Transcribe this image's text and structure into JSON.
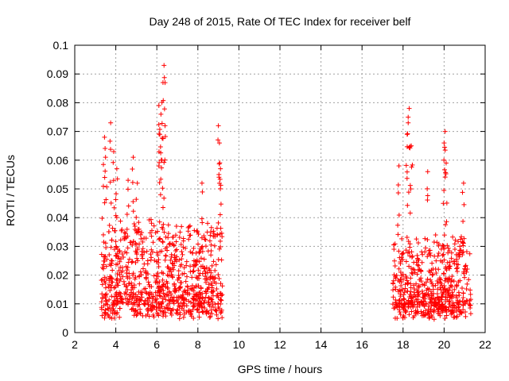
{
  "chart_data": {
    "type": "scatter",
    "title": "Day 248 of 2015, Rate Of TEC Index for receiver belf",
    "xlabel": "GPS time / hours",
    "ylabel": "ROTI / TECUs",
    "xlim": [
      2,
      22
    ],
    "ylim": [
      0,
      0.1
    ],
    "xticks": [
      "2",
      "4",
      "6",
      "8",
      "10",
      "12",
      "14",
      "16",
      "18",
      "20",
      "22"
    ],
    "yticks": [
      "0",
      "0.01",
      "0.02",
      "0.03",
      "0.04",
      "0.05",
      "0.06",
      "0.07",
      "0.08",
      "0.09",
      "0.1"
    ],
    "grid": true,
    "marker": "+",
    "color": "#ff0000",
    "series": [
      {
        "name": "ROTI",
        "segments": [
          {
            "x_start": 3.3,
            "x_end": 9.2,
            "typical": 0.015,
            "spread": 0.012,
            "min": 0.002,
            "max": 0.043
          },
          {
            "x_start": 17.5,
            "x_end": 21.3,
            "typical": 0.013,
            "spread": 0.01,
            "min": 0.003,
            "max": 0.04
          }
        ],
        "peaks": [
          {
            "x": 3.45,
            "y": 0.068
          },
          {
            "x": 3.5,
            "y": 0.061
          },
          {
            "x": 3.75,
            "y": 0.073
          },
          {
            "x": 3.9,
            "y": 0.063
          },
          {
            "x": 4.05,
            "y": 0.057
          },
          {
            "x": 4.6,
            "y": 0.053
          },
          {
            "x": 4.85,
            "y": 0.061
          },
          {
            "x": 5.05,
            "y": 0.052
          },
          {
            "x": 6.1,
            "y": 0.079
          },
          {
            "x": 6.2,
            "y": 0.076
          },
          {
            "x": 6.35,
            "y": 0.093
          },
          {
            "x": 6.3,
            "y": 0.087
          },
          {
            "x": 6.4,
            "y": 0.072
          },
          {
            "x": 6.25,
            "y": 0.06
          },
          {
            "x": 6.15,
            "y": 0.069
          },
          {
            "x": 8.2,
            "y": 0.052
          },
          {
            "x": 9.0,
            "y": 0.072
          },
          {
            "x": 9.05,
            "y": 0.066
          },
          {
            "x": 9.1,
            "y": 0.057
          },
          {
            "x": 17.8,
            "y": 0.058
          },
          {
            "x": 18.3,
            "y": 0.078
          },
          {
            "x": 18.25,
            "y": 0.073
          },
          {
            "x": 18.2,
            "y": 0.069
          },
          {
            "x": 18.4,
            "y": 0.065
          },
          {
            "x": 19.2,
            "y": 0.056
          },
          {
            "x": 20.05,
            "y": 0.07
          },
          {
            "x": 20.0,
            "y": 0.066
          },
          {
            "x": 20.1,
            "y": 0.059
          },
          {
            "x": 20.95,
            "y": 0.052
          }
        ]
      }
    ]
  }
}
